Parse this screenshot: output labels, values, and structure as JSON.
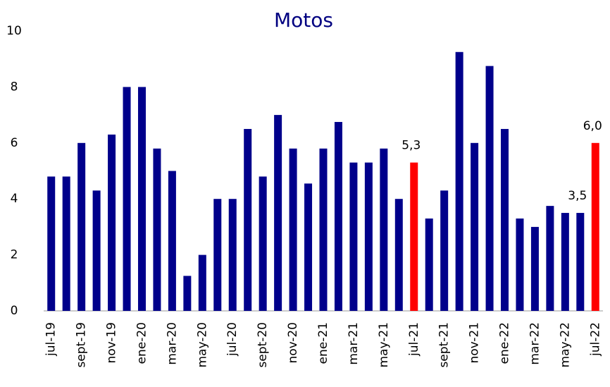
{
  "chart_data": {
    "type": "bar",
    "title": "Motos",
    "categories": [
      "jul-19",
      null,
      "sept-19",
      null,
      "nov-19",
      null,
      "ene-20",
      null,
      "mar-20",
      null,
      "may-20",
      null,
      "jul-20",
      null,
      "sept-20",
      null,
      "nov-20",
      null,
      "ene-21",
      null,
      "mar-21",
      null,
      "may-21",
      null,
      "jul-21",
      null,
      "sept-21",
      null,
      "nov-21",
      null,
      "ene-22",
      null,
      "mar-22",
      null,
      "may-22",
      null,
      "jul-22"
    ],
    "values": [
      4.8,
      4.8,
      6,
      4.3,
      6.3,
      8,
      8,
      5.8,
      5,
      1.25,
      2,
      4,
      4,
      6.5,
      4.8,
      7,
      5.8,
      4.55,
      5.8,
      6.75,
      5.3,
      5.3,
      5.8,
      4,
      5.3,
      3.3,
      4.3,
      9.25,
      6,
      8.75,
      6.5,
      3.3,
      3,
      3.75,
      3.5,
      3.5,
      6.0
    ],
    "value_labels": [
      null,
      null,
      null,
      null,
      null,
      null,
      null,
      null,
      null,
      null,
      null,
      null,
      null,
      null,
      null,
      null,
      null,
      null,
      null,
      null,
      null,
      null,
      null,
      null,
      "5,3",
      null,
      null,
      null,
      null,
      null,
      null,
      null,
      null,
      null,
      null,
      "3,5",
      "6,0"
    ],
    "colors": [
      "#00008b",
      "#00008b",
      "#00008b",
      "#00008b",
      "#00008b",
      "#00008b",
      "#00008b",
      "#00008b",
      "#00008b",
      "#00008b",
      "#00008b",
      "#00008b",
      "#00008b",
      "#00008b",
      "#00008b",
      "#00008b",
      "#00008b",
      "#00008b",
      "#00008b",
      "#00008b",
      "#00008b",
      "#00008b",
      "#00008b",
      "#00008b",
      "#ff0000",
      "#00008b",
      "#00008b",
      "#00008b",
      "#00008b",
      "#00008b",
      "#00008b",
      "#00008b",
      "#00008b",
      "#00008b",
      "#00008b",
      "#00008b",
      "#ff0000"
    ],
    "ylim": [
      0,
      10
    ],
    "yticks": [
      0,
      2,
      4,
      6,
      8,
      10
    ],
    "grid": false
  }
}
